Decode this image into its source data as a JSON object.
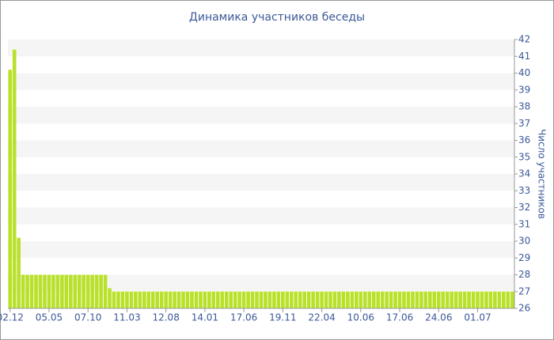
{
  "chart_data": {
    "type": "bar",
    "title": "Динамика участников беседы",
    "y_label": "Число участников",
    "categories": [
      "02.12",
      null,
      null,
      null,
      null,
      null,
      null,
      null,
      null,
      "05.05",
      null,
      null,
      null,
      null,
      null,
      null,
      null,
      null,
      "07.10",
      null,
      null,
      null,
      null,
      null,
      null,
      null,
      null,
      "11.03",
      null,
      null,
      null,
      null,
      null,
      null,
      null,
      null,
      "12.08",
      null,
      null,
      null,
      null,
      null,
      null,
      null,
      null,
      "14.01",
      null,
      null,
      null,
      null,
      null,
      null,
      null,
      null,
      "17.06",
      null,
      null,
      null,
      null,
      null,
      null,
      null,
      null,
      "19.11",
      null,
      null,
      null,
      null,
      null,
      null,
      null,
      null,
      "22.04",
      null,
      null,
      null,
      null,
      null,
      null,
      null,
      null,
      "10.06",
      null,
      null,
      null,
      null,
      null,
      null,
      null,
      null,
      "17.06",
      null,
      null,
      null,
      null,
      null,
      null,
      null,
      null,
      "24.06",
      null,
      null,
      null,
      null,
      null,
      null,
      null,
      null,
      "01.07",
      null,
      null,
      null,
      null,
      null,
      null,
      null,
      null
    ],
    "values": [
      40.2,
      41.4,
      30.2,
      28,
      28,
      28,
      28,
      28,
      28,
      28,
      28,
      28,
      28,
      28,
      28,
      28,
      28,
      28,
      28,
      28,
      28,
      28,
      28,
      27.2,
      27,
      27,
      27,
      27,
      27,
      27,
      27,
      27,
      27,
      27,
      27,
      27,
      27,
      27,
      27,
      27,
      27,
      27,
      27,
      27,
      27,
      27,
      27,
      27,
      27,
      27,
      27,
      27,
      27,
      27,
      27,
      27,
      27,
      27,
      27,
      27,
      27,
      27,
      27,
      27,
      27,
      27,
      27,
      27,
      27,
      27,
      27,
      27,
      27,
      27,
      27,
      27,
      27,
      27,
      27,
      27,
      27,
      27,
      27,
      27,
      27,
      27,
      27,
      27,
      27,
      27,
      27,
      27,
      27,
      27,
      27,
      27,
      27,
      27,
      27,
      27,
      27,
      27,
      27,
      27,
      27,
      27,
      27,
      27,
      27,
      27,
      27,
      27,
      27,
      27,
      27,
      27,
      27
    ],
    "color": "#b9e12a",
    "ylim": [
      26,
      42
    ],
    "yticks": [
      26,
      27,
      28,
      29,
      30,
      31,
      32,
      33,
      34,
      35,
      36,
      37,
      38,
      39,
      40,
      41,
      42
    ],
    "y_axis_side": "right",
    "grid": "bands"
  }
}
